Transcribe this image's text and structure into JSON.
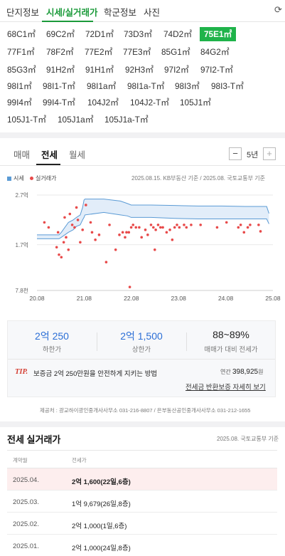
{
  "tabs": [
    {
      "label": "단지정보"
    },
    {
      "label": "시세/실거래가"
    },
    {
      "label": "학군정보"
    },
    {
      "label": "사진"
    }
  ],
  "area_types": [
    "68C1㎡",
    "69C2㎡",
    "72D1㎡",
    "73D3㎡",
    "74D2㎡",
    "75E1㎡",
    "77F1㎡",
    "78F2㎡",
    "77E2㎡",
    "77E3㎡",
    "85G1㎡",
    "84G2㎡",
    "85G3㎡",
    "91H2㎡",
    "91H1㎡",
    "92H3㎡",
    "97I2㎡",
    "97I2-T㎡",
    "98I1㎡",
    "98I1-T㎡",
    "98I1a㎡",
    "98I1a-T㎡",
    "98I3㎡",
    "98I3-T㎡",
    "99I4㎡",
    "99I4-T㎡",
    "104J2㎡",
    "104J2-T㎡",
    "105J1㎡",
    "105J1-T㎡",
    "105J1a㎡",
    "105J1a-T㎡"
  ],
  "selected_area": "75E1㎡",
  "chart_tabs": [
    "매매",
    "전세",
    "월세"
  ],
  "period": "5년",
  "minus": "−",
  "plus": "+",
  "legend": {
    "price": "시세",
    "deal": "실거래가"
  },
  "source_note": "2025.08.15. KB부동산 기준 / 2025.08. 국토교통부 기준",
  "colors": {
    "accent": "#1fb34a",
    "band": "#5b9bd5",
    "dot": "#e84a4a",
    "blue": "#2c6fd6"
  },
  "chart_data": {
    "type": "scatter",
    "y_ticks": [
      "2.7억",
      "1.7억",
      "7.8천"
    ],
    "x_ticks": [
      "20.08",
      "21.08",
      "22.08",
      "23.08",
      "24.08",
      "25.08"
    ],
    "ylim": [
      0.78,
      2.7
    ],
    "xlim": [
      2020.583,
      2025.583
    ],
    "band": {
      "x": [
        2020.583,
        2021.05,
        2021.1,
        2021.25,
        2021.35,
        2021.42,
        2021.5,
        2021.55,
        2021.58,
        2021.6,
        2022.0,
        2022.35,
        2022.5,
        2022.58,
        2023.0,
        2023.5,
        2024.0,
        2024.5,
        2025.0,
        2025.45,
        2025.5
      ],
      "upper": [
        1.9,
        1.9,
        1.95,
        2.15,
        2.2,
        2.25,
        2.3,
        2.45,
        2.6,
        2.62,
        2.62,
        2.58,
        2.53,
        2.5,
        2.5,
        2.49,
        2.48,
        2.48,
        2.47,
        2.47,
        2.33
      ],
      "lower": [
        1.82,
        1.82,
        1.85,
        1.95,
        2.0,
        2.07,
        2.1,
        2.2,
        2.25,
        2.3,
        2.35,
        2.3,
        2.28,
        2.25,
        2.25,
        2.23,
        2.22,
        2.22,
        2.22,
        2.22,
        2.12
      ]
    },
    "deals": [
      [
        2020.74,
        2.15
      ],
      [
        2020.83,
        2.05
      ],
      [
        2021.0,
        1.65
      ],
      [
        2021.03,
        1.95
      ],
      [
        2021.05,
        1.5
      ],
      [
        2021.1,
        1.45
      ],
      [
        2021.15,
        1.75
      ],
      [
        2021.17,
        2.25
      ],
      [
        2021.2,
        1.85
      ],
      [
        2021.25,
        1.6
      ],
      [
        2021.28,
        2.32
      ],
      [
        2021.33,
        2.1
      ],
      [
        2021.38,
        2.05
      ],
      [
        2021.42,
        2.45
      ],
      [
        2021.45,
        2.2
      ],
      [
        2021.5,
        1.75
      ],
      [
        2021.55,
        2.0
      ],
      [
        2021.62,
        2.5
      ],
      [
        2021.72,
        2.15
      ],
      [
        2021.75,
        1.95
      ],
      [
        2021.82,
        1.8
      ],
      [
        2021.9,
        1.9
      ],
      [
        2022.05,
        1.35
      ],
      [
        2022.12,
        2.1
      ],
      [
        2022.25,
        1.6
      ],
      [
        2022.33,
        1.9
      ],
      [
        2022.4,
        1.95
      ],
      [
        2022.45,
        1.85
      ],
      [
        2022.48,
        1.95
      ],
      [
        2022.53,
        1.95
      ],
      [
        2022.55,
        0.85
      ],
      [
        2022.58,
        2.05
      ],
      [
        2022.62,
        2.1
      ],
      [
        2022.68,
        2.05
      ],
      [
        2022.75,
        2.05
      ],
      [
        2022.8,
        1.85
      ],
      [
        2022.88,
        2.0
      ],
      [
        2022.93,
        1.9
      ],
      [
        2023.0,
        2.1
      ],
      [
        2023.05,
        2.05
      ],
      [
        2023.08,
        1.6
      ],
      [
        2023.1,
        2.0
      ],
      [
        2023.15,
        2.1
      ],
      [
        2023.2,
        2.05
      ],
      [
        2023.25,
        2.05
      ],
      [
        2023.33,
        1.95
      ],
      [
        2023.4,
        2.0
      ],
      [
        2023.45,
        1.8
      ],
      [
        2023.5,
        2.05
      ],
      [
        2023.55,
        2.1
      ],
      [
        2023.6,
        2.05
      ],
      [
        2023.7,
        2.1
      ],
      [
        2023.75,
        2.05
      ],
      [
        2023.85,
        2.1
      ],
      [
        2024.05,
        2.1
      ],
      [
        2024.4,
        2.05
      ],
      [
        2024.6,
        2.15
      ],
      [
        2024.85,
        2.05
      ],
      [
        2024.9,
        2.1
      ],
      [
        2024.97,
        1.95
      ],
      [
        2025.05,
        2.05
      ],
      [
        2025.1,
        2.1
      ],
      [
        2025.28,
        2.1
      ],
      [
        2025.32,
        1.97
      ]
    ]
  },
  "stats": [
    {
      "value": "2억 250",
      "label": "하한가"
    },
    {
      "value": "2억 1,500",
      "label": "상한가"
    },
    {
      "value": "88~89%",
      "label": "매매가 대비 전세가"
    }
  ],
  "tip": {
    "badge": "TIP.",
    "text": "보증금 2억 250만원을 안전하게 지키는 방법",
    "annual_label": "연간",
    "annual_value": "398,925",
    "annual_unit": "원",
    "link": "전세금 반환보증 자세히 보기"
  },
  "footnote": "제공처 : 광교하이광인중개사사무소 031-216-8807 / 은부동산공인중개사사무소 031-212-1655",
  "deals_section": {
    "title": "전세 실거래가",
    "source": "2025.08. 국토교통부 기준",
    "col_date": "계약월",
    "col_price": "전세가",
    "rows": [
      {
        "date": "2025.04.",
        "price": "2억 1,600(22일,6층)"
      },
      {
        "date": "2025.03.",
        "price": "1억 9,679(26일,8층)"
      },
      {
        "date": "2025.02.",
        "price": "2억 1,000(1일,6층)"
      },
      {
        "date": "2025.01.",
        "price": "2억 1,000(24일,8층)"
      }
    ]
  }
}
